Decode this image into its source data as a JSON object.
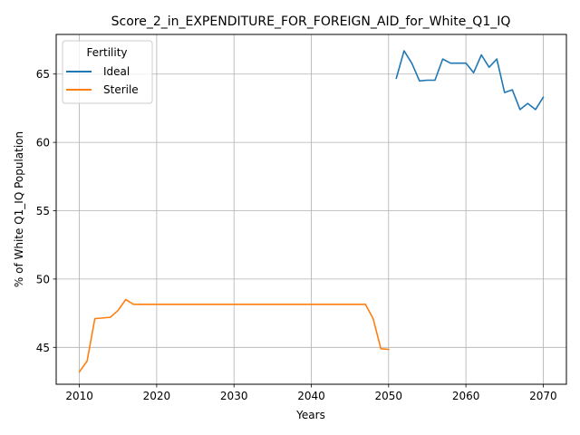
{
  "chart_data": {
    "type": "line",
    "title": "Score_2_in_EXPENDITURE_FOR_FOREIGN_AID_for_White_Q1_IQ",
    "xlabel": "Years",
    "ylabel": "% of White Q1_IQ Population",
    "xlim": [
      2007,
      2073
    ],
    "ylim": [
      42.3,
      67.9
    ],
    "xticks": [
      2010,
      2020,
      2030,
      2040,
      2050,
      2060,
      2070
    ],
    "yticks": [
      45,
      50,
      55,
      60,
      65
    ],
    "grid": true,
    "legend": {
      "title": "Fertility",
      "placement": "top-left"
    },
    "series": [
      {
        "name": "Ideal",
        "color": "#1f77b4",
        "x": [
          2051,
          2052,
          2053,
          2054,
          2055,
          2056,
          2057,
          2058,
          2059,
          2060,
          2061,
          2062,
          2063,
          2064,
          2065,
          2066,
          2067,
          2068,
          2069,
          2070
        ],
        "values": [
          64.7,
          66.7,
          65.8,
          64.5,
          64.55,
          64.55,
          66.1,
          65.8,
          65.8,
          65.8,
          65.1,
          66.4,
          65.5,
          66.1,
          63.65,
          63.85,
          62.4,
          62.85,
          62.4,
          63.3
        ]
      },
      {
        "name": "Sterile",
        "color": "#ff7f0e",
        "x": [
          2010,
          2011,
          2012,
          2013,
          2014,
          2015,
          2016,
          2017,
          2018,
          2019,
          2020,
          2021,
          2022,
          2023,
          2024,
          2025,
          2026,
          2027,
          2028,
          2029,
          2030,
          2031,
          2032,
          2033,
          2034,
          2035,
          2036,
          2037,
          2038,
          2039,
          2040,
          2041,
          2042,
          2043,
          2044,
          2045,
          2046,
          2047,
          2048,
          2049,
          2050
        ],
        "values": [
          43.2,
          44.0,
          47.1,
          47.15,
          47.2,
          47.7,
          48.5,
          48.15,
          48.15,
          48.15,
          48.15,
          48.15,
          48.15,
          48.15,
          48.15,
          48.15,
          48.15,
          48.15,
          48.15,
          48.15,
          48.15,
          48.15,
          48.15,
          48.15,
          48.15,
          48.15,
          48.15,
          48.15,
          48.15,
          48.15,
          48.15,
          48.15,
          48.15,
          48.15,
          48.15,
          48.15,
          48.15,
          48.15,
          47.1,
          44.9,
          44.85
        ]
      }
    ]
  }
}
